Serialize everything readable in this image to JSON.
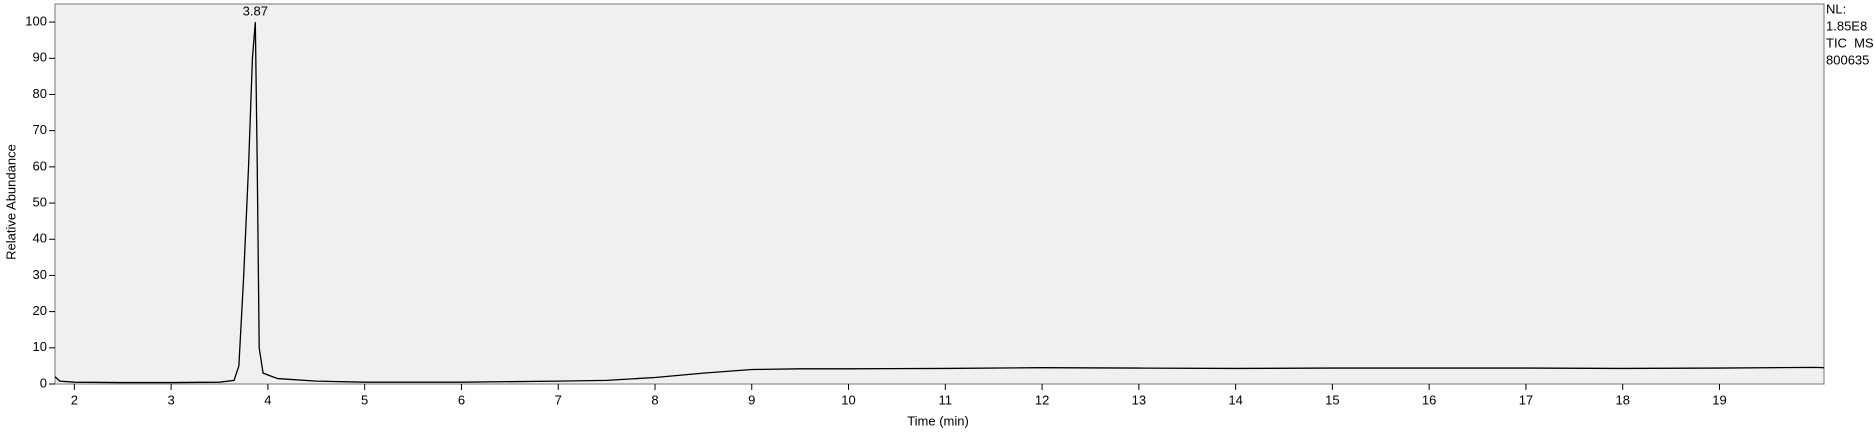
{
  "chart_data": {
    "type": "line",
    "xlabel": "Time (min)",
    "ylabel": "Relative Abundance",
    "side_notes": [
      "NL:",
      "1.85E8",
      "TIC  MS",
      "800635"
    ],
    "annotations": [
      {
        "text": "3.87",
        "x": 3.87,
        "y": 100
      }
    ],
    "series": [
      {
        "color": "#000000",
        "x": [
          1.8,
          1.85,
          2.0,
          2.5,
          3.0,
          3.5,
          3.65,
          3.7,
          3.75,
          3.8,
          3.84,
          3.87,
          3.89,
          3.91,
          3.95,
          4.1,
          4.5,
          5.0,
          6.0,
          7.0,
          7.5,
          8.0,
          8.5,
          9.0,
          9.5,
          10.0,
          11.0,
          12.0,
          13.0,
          14.0,
          15.0,
          16.0,
          17.0,
          18.0,
          19.0,
          20.0,
          20.08
        ],
        "values": [
          2,
          0.8,
          0.5,
          0.4,
          0.4,
          0.5,
          1,
          5,
          30,
          60,
          90,
          100,
          60,
          10,
          3,
          1.5,
          0.8,
          0.5,
          0.5,
          0.8,
          1,
          1.8,
          3,
          4,
          4.2,
          4.2,
          4.3,
          4.5,
          4.4,
          4.3,
          4.4,
          4.4,
          4.4,
          4.3,
          4.4,
          4.6,
          4.5
        ]
      }
    ],
    "xlim": [
      1.8,
      20.08
    ],
    "xticks": [
      2,
      3,
      4,
      5,
      6,
      7,
      8,
      9,
      10,
      11,
      12,
      13,
      14,
      15,
      16,
      17,
      18,
      19
    ],
    "ylim": [
      0,
      105
    ],
    "yticks": [
      0,
      10,
      20,
      30,
      40,
      50,
      60,
      70,
      80,
      90,
      100
    ],
    "grid": false
  }
}
